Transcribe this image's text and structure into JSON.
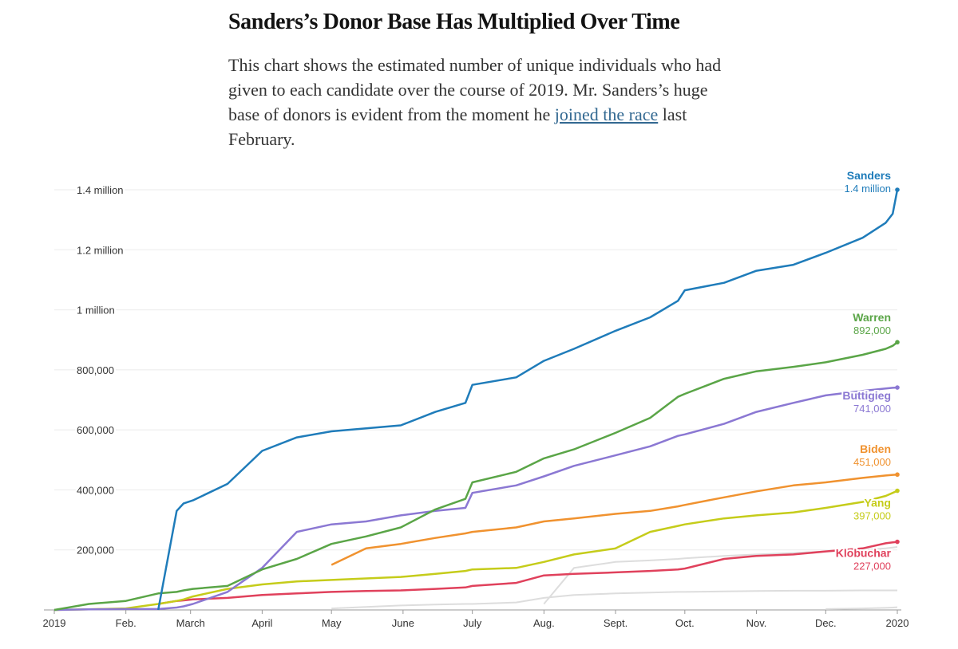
{
  "chart_data": {
    "type": "line",
    "title": "Sanders’s Donor Base Has Multiplied Over Time",
    "subtitle": {
      "text_before": "This chart shows the estimated number of unique individuals who had given to each candidate over the course of 2019. Mr. Sanders’s huge base of donors is evident from the moment he",
      "link": "joined the race",
      "text_after": "last February."
    },
    "x": [
      0,
      15,
      31,
      45,
      53,
      56,
      60,
      75,
      90,
      105,
      120,
      135,
      150,
      165,
      178,
      181,
      200,
      212,
      225,
      243,
      258,
      270,
      273,
      290,
      304,
      320,
      334,
      350,
      360,
      363,
      365
    ],
    "xlim": [
      0,
      365
    ],
    "xticks": [
      {
        "value": 0,
        "label": "2019"
      },
      {
        "value": 31,
        "label": "Feb."
      },
      {
        "value": 59,
        "label": "March"
      },
      {
        "value": 90,
        "label": "April"
      },
      {
        "value": 120,
        "label": "May"
      },
      {
        "value": 151,
        "label": "June"
      },
      {
        "value": 181,
        "label": "July"
      },
      {
        "value": 212,
        "label": "Aug."
      },
      {
        "value": 243,
        "label": "Sept."
      },
      {
        "value": 273,
        "label": "Oct."
      },
      {
        "value": 304,
        "label": "Nov."
      },
      {
        "value": 334,
        "label": "Dec."
      },
      {
        "value": 365,
        "label": "2020"
      }
    ],
    "ylim": [
      0,
      1400000
    ],
    "yticks": [
      {
        "value": 200000,
        "label": "200,000"
      },
      {
        "value": 400000,
        "label": "400,000"
      },
      {
        "value": 600000,
        "label": "600,000"
      },
      {
        "value": 800000,
        "label": "800,000"
      },
      {
        "value": 1000000,
        "label": "1 million"
      },
      {
        "value": 1200000,
        "label": "1.2 million"
      },
      {
        "value": 1400000,
        "label": "1.4 million"
      }
    ],
    "grid": true,
    "series": [
      {
        "color": "#dddddd",
        "values": [
          null,
          null,
          null,
          null,
          null,
          null,
          null,
          null,
          null,
          null,
          null,
          null,
          null,
          null,
          null,
          null,
          null,
          20000,
          140000,
          160000,
          165000,
          170000,
          172000,
          180000,
          185000,
          190000,
          195000,
          200000,
          205000,
          208000,
          210000
        ]
      },
      {
        "color": "#dddddd",
        "values": [
          null,
          null,
          null,
          null,
          null,
          null,
          null,
          null,
          null,
          null,
          5000,
          10000,
          15000,
          18000,
          20000,
          20000,
          25000,
          40000,
          50000,
          55000,
          58000,
          60000,
          60000,
          62000,
          63000,
          64000,
          64000,
          65000,
          65000,
          65000,
          65000
        ]
      },
      {
        "color": "#dddddd",
        "values": [
          null,
          null,
          null,
          null,
          null,
          null,
          null,
          null,
          null,
          null,
          null,
          null,
          null,
          null,
          null,
          null,
          null,
          null,
          null,
          null,
          null,
          null,
          null,
          null,
          null,
          null,
          3000,
          5000,
          7000,
          8000,
          9000
        ]
      },
      {
        "name": "Klobuchar",
        "color": "#e0415c",
        "values": [
          null,
          null,
          null,
          20000,
          30000,
          32000,
          35000,
          40000,
          50000,
          55000,
          60000,
          63000,
          65000,
          70000,
          75000,
          80000,
          90000,
          115000,
          120000,
          125000,
          130000,
          135000,
          138000,
          170000,
          180000,
          185000,
          195000,
          205000,
          222000,
          225000,
          227000
        ],
        "value_labels": [
          null,
          null,
          null,
          null,
          null,
          null,
          null,
          null,
          null,
          null,
          null,
          null,
          null,
          null,
          null,
          null,
          null,
          null,
          null,
          null,
          null,
          null,
          null,
          null,
          null,
          null,
          null,
          null,
          null,
          null,
          "227,000"
        ]
      },
      {
        "name": "Yang",
        "color": "#c5cc1a",
        "values": [
          0,
          2000,
          5000,
          20000,
          30000,
          35000,
          45000,
          70000,
          85000,
          95000,
          100000,
          105000,
          110000,
          120000,
          130000,
          135000,
          140000,
          160000,
          185000,
          205000,
          260000,
          280000,
          285000,
          305000,
          315000,
          325000,
          340000,
          360000,
          380000,
          390000,
          397000
        ],
        "value_labels": [
          null,
          null,
          null,
          null,
          null,
          null,
          null,
          null,
          null,
          null,
          null,
          null,
          null,
          null,
          null,
          null,
          null,
          null,
          null,
          null,
          null,
          null,
          null,
          null,
          null,
          null,
          null,
          null,
          null,
          null,
          "397,000"
        ]
      },
      {
        "name": "Biden",
        "color": "#f0922f",
        "values": [
          null,
          null,
          null,
          null,
          null,
          null,
          null,
          null,
          null,
          null,
          150000,
          205000,
          220000,
          240000,
          255000,
          260000,
          275000,
          295000,
          305000,
          320000,
          330000,
          345000,
          350000,
          375000,
          395000,
          415000,
          425000,
          440000,
          448000,
          450000,
          451000
        ],
        "value_labels": [
          null,
          null,
          null,
          null,
          null,
          null,
          null,
          null,
          null,
          null,
          null,
          null,
          null,
          null,
          null,
          null,
          null,
          null,
          null,
          null,
          null,
          null,
          null,
          null,
          null,
          null,
          null,
          null,
          null,
          null,
          "451,000"
        ]
      },
      {
        "name": "Buttigieg",
        "color": "#8b78d3",
        "values": [
          0,
          2000,
          3000,
          3000,
          8000,
          12000,
          20000,
          60000,
          140000,
          260000,
          285000,
          295000,
          315000,
          330000,
          340000,
          390000,
          415000,
          445000,
          480000,
          515000,
          545000,
          580000,
          585000,
          620000,
          660000,
          690000,
          715000,
          730000,
          738000,
          740000,
          741000
        ],
        "value_labels": [
          null,
          null,
          null,
          null,
          null,
          null,
          null,
          null,
          null,
          null,
          null,
          null,
          null,
          null,
          null,
          null,
          null,
          null,
          null,
          null,
          null,
          null,
          null,
          null,
          null,
          null,
          null,
          null,
          null,
          null,
          "741,000"
        ]
      },
      {
        "name": "Warren",
        "color": "#5aa547",
        "values": [
          0,
          20000,
          30000,
          55000,
          60000,
          65000,
          70000,
          80000,
          135000,
          170000,
          220000,
          245000,
          275000,
          335000,
          370000,
          425000,
          460000,
          505000,
          535000,
          590000,
          640000,
          710000,
          720000,
          770000,
          795000,
          810000,
          825000,
          850000,
          870000,
          880000,
          892000
        ],
        "value_labels": [
          null,
          null,
          null,
          null,
          null,
          null,
          null,
          null,
          null,
          null,
          null,
          null,
          null,
          null,
          null,
          null,
          null,
          null,
          null,
          null,
          null,
          null,
          null,
          null,
          null,
          null,
          null,
          null,
          null,
          null,
          "892,000"
        ]
      },
      {
        "name": "Sanders",
        "color": "#1f7cba",
        "values": [
          null,
          null,
          null,
          0,
          330000,
          355000,
          365000,
          420000,
          530000,
          575000,
          595000,
          605000,
          615000,
          660000,
          690000,
          750000,
          775000,
          830000,
          870000,
          930000,
          975000,
          1030000,
          1065000,
          1090000,
          1130000,
          1150000,
          1190000,
          1240000,
          1290000,
          1320000,
          1400000
        ],
        "value_labels": [
          null,
          null,
          null,
          null,
          null,
          null,
          null,
          null,
          null,
          null,
          null,
          null,
          null,
          null,
          null,
          null,
          null,
          null,
          null,
          null,
          null,
          null,
          null,
          null,
          null,
          null,
          null,
          null,
          null,
          null,
          "1.4 million"
        ]
      }
    ]
  }
}
